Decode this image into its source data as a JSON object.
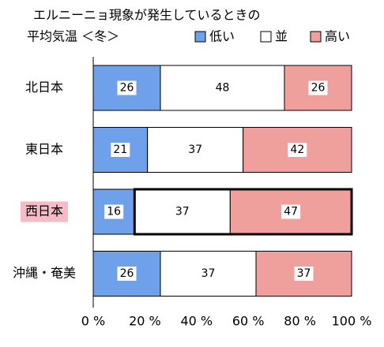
{
  "chart_data": {
    "type": "stacked-bar-horizontal",
    "title": "エルニーニョ現象が発生しているときの",
    "subtitle": "平均気温 ＜冬＞",
    "categories": [
      "北日本",
      "東日本",
      "西日本",
      "沖縄・奄美"
    ],
    "series": [
      {
        "name": "低い",
        "color": "#6fa0ea",
        "values": [
          26,
          21,
          16,
          26
        ]
      },
      {
        "name": "並",
        "color": "#ffffff",
        "values": [
          48,
          37,
          37,
          37
        ]
      },
      {
        "name": "高い",
        "color": "#f0a09c",
        "values": [
          26,
          42,
          47,
          37
        ]
      }
    ],
    "xlim": [
      0,
      100
    ],
    "xticks": [
      {
        "value": 0,
        "label": "0 %"
      },
      {
        "value": 20,
        "label": "20 %"
      },
      {
        "value": 40,
        "label": "40 %"
      },
      {
        "value": 60,
        "label": "60 %"
      },
      {
        "value": 80,
        "label": "80 %"
      },
      {
        "value": 100,
        "label": "100 %"
      }
    ],
    "highlight": "西日本",
    "highlight_color": "#f5bcc8"
  }
}
